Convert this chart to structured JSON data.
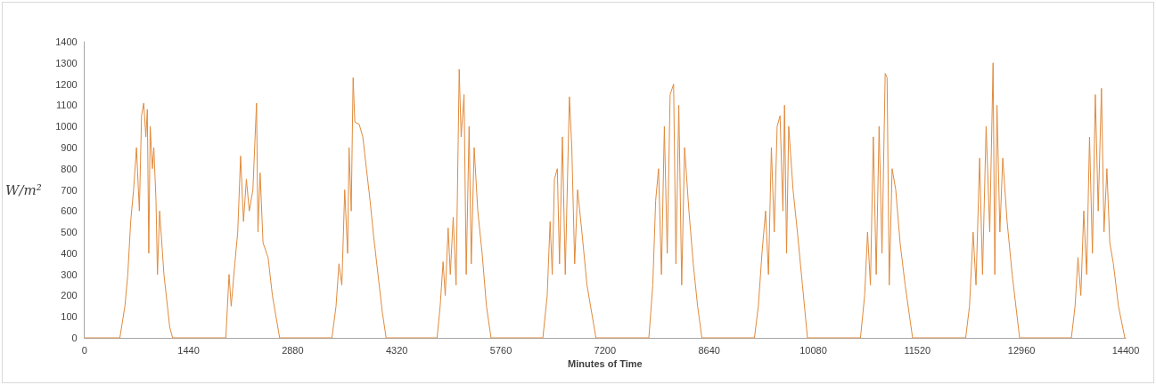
{
  "chart_data": {
    "type": "line",
    "xlabel": "Minutes of Time",
    "ylabel": "W/m²",
    "color": "#e08a3c",
    "marker": "none",
    "grid": false,
    "xlim": [
      0,
      14400
    ],
    "xticks": [
      0,
      1440,
      2880,
      4320,
      5760,
      7200,
      8640,
      10080,
      11520,
      12960,
      14400
    ],
    "ylim": [
      0,
      1400
    ],
    "yticks": [
      0,
      100,
      200,
      300,
      400,
      500,
      600,
      700,
      800,
      900,
      1000,
      1100,
      1200,
      1300,
      1400
    ],
    "x": [
      0,
      490,
      560,
      600,
      640,
      680,
      720,
      760,
      790,
      820,
      850,
      870,
      890,
      910,
      940,
      960,
      990,
      1010,
      1040,
      1100,
      1180,
      1220,
      1956,
      2000,
      2030,
      2080,
      2120,
      2160,
      2200,
      2240,
      2280,
      2330,
      2380,
      2400,
      2430,
      2470,
      2540,
      2600,
      2700,
      3423,
      3480,
      3520,
      3560,
      3600,
      3640,
      3660,
      3690,
      3716,
      3740,
      3800,
      3850,
      3900,
      3950,
      4000,
      4060,
      4120,
      4173,
      4877,
      4920,
      4960,
      4990,
      5030,
      5060,
      5100,
      5140,
      5183,
      5210,
      5250,
      5280,
      5320,
      5350,
      5390,
      5440,
      5500,
      5560,
      5623,
      6340,
      6400,
      6440,
      6470,
      6500,
      6540,
      6570,
      6610,
      6650,
      6707,
      6740,
      6780,
      6820,
      6880,
      6950,
      7074,
      7806,
      7860,
      7900,
      7940,
      7980,
      8020,
      8060,
      8100,
      8148,
      8180,
      8220,
      8260,
      8300,
      8360,
      8420,
      8480,
      8539,
      9266,
      9320,
      9370,
      9420,
      9460,
      9500,
      9540,
      9580,
      9620,
      9660,
      9682,
      9710,
      9740,
      9800,
      9860,
      9930,
      9999,
      10732,
      10790,
      10830,
      10870,
      10910,
      10950,
      10990,
      11030,
      11074,
      11100,
      11130,
      11170,
      11220,
      11280,
      11350,
      11453,
      12187,
      12240,
      12290,
      12330,
      12380,
      12420,
      12470,
      12520,
      12566,
      12590,
      12620,
      12660,
      12700,
      12760,
      12830,
      12933,
      13649,
      13700,
      13740,
      13780,
      13820,
      13860,
      13900,
      13940,
      13980,
      14020,
      14065,
      14100,
      14140,
      14180,
      14230,
      14300,
      14388,
      14400
    ],
    "values": [
      0,
      0,
      150,
      300,
      550,
      700,
      900,
      600,
      1050,
      1110,
      950,
      1080,
      400,
      1000,
      800,
      900,
      650,
      300,
      600,
      300,
      50,
      0,
      0,
      300,
      150,
      350,
      500,
      860,
      550,
      750,
      600,
      700,
      1110,
      500,
      780,
      450,
      380,
      200,
      0,
      0,
      150,
      350,
      250,
      700,
      400,
      900,
      600,
      1230,
      1020,
      1010,
      950,
      800,
      650,
      480,
      300,
      120,
      0,
      0,
      150,
      360,
      200,
      520,
      300,
      570,
      250,
      1270,
      950,
      1150,
      300,
      1000,
      350,
      900,
      600,
      400,
      150,
      0,
      0,
      200,
      550,
      300,
      750,
      800,
      350,
      950,
      300,
      1140,
      900,
      350,
      700,
      500,
      250,
      0,
      0,
      250,
      650,
      800,
      300,
      1000,
      400,
      1150,
      1200,
      350,
      1100,
      250,
      900,
      600,
      350,
      150,
      0,
      0,
      150,
      400,
      600,
      300,
      900,
      500,
      1000,
      1050,
      600,
      1100,
      400,
      1000,
      700,
      500,
      250,
      0,
      0,
      200,
      500,
      250,
      950,
      300,
      1000,
      400,
      1250,
      1230,
      250,
      800,
      700,
      450,
      250,
      0,
      0,
      150,
      500,
      250,
      850,
      300,
      1000,
      500,
      1300,
      300,
      1100,
      500,
      850,
      550,
      300,
      0,
      0,
      150,
      380,
      200,
      600,
      300,
      950,
      400,
      1150,
      600,
      1180,
      500,
      800,
      450,
      350,
      150,
      0,
      0
    ]
  }
}
